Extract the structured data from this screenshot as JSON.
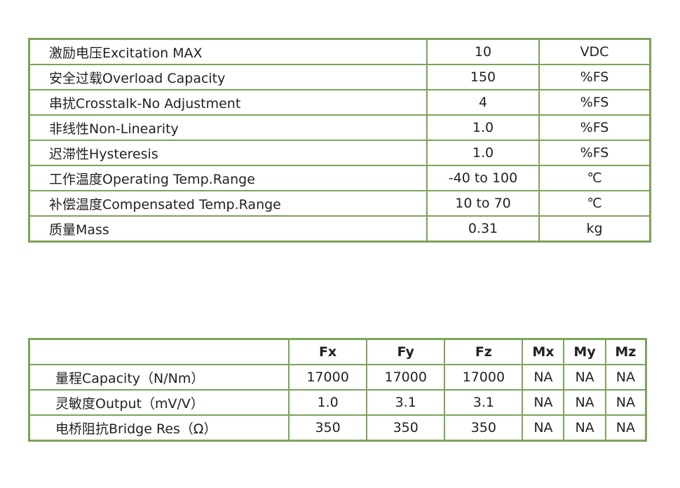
{
  "spec_table": {
    "rows": [
      {
        "label": "激励电压Excitation MAX",
        "value": "10",
        "unit": "VDC"
      },
      {
        "label": "安全过载Overload Capacity",
        "value": "150",
        "unit": "%FS"
      },
      {
        "label": "串扰Crosstalk-No Adjustment",
        "value": "4",
        "unit": "%FS"
      },
      {
        "label": "非线性Non-Linearity",
        "value": "1.0",
        "unit": "%FS"
      },
      {
        "label": "迟滞性Hysteresis",
        "value": "1.0",
        "unit": "%FS"
      },
      {
        "label": "工作温度Operating Temp.Range",
        "value": "-40 to 100",
        "unit": "℃"
      },
      {
        "label": "补偿温度Compensated Temp.Range",
        "value": "10 to 70",
        "unit": "℃"
      },
      {
        "label": "质量Mass",
        "value": "0.31",
        "unit": "kg"
      }
    ]
  },
  "axis_table": {
    "headers": [
      "",
      "Fx",
      "Fy",
      "Fz",
      "Mx",
      "My",
      "Mz"
    ],
    "rows": [
      {
        "label": "量程Capacity（N/Nm）",
        "values": [
          "17000",
          "17000",
          "17000",
          "NA",
          "NA",
          "NA"
        ]
      },
      {
        "label": "灵敏度Output（mV/V）",
        "values": [
          "1.0",
          "3.1",
          "3.1",
          "NA",
          "NA",
          "NA"
        ]
      },
      {
        "label": "电桥阻抗Bridge Res（Ω）",
        "values": [
          "350",
          "350",
          "350",
          "NA",
          "NA",
          "NA"
        ]
      }
    ]
  },
  "colors": {
    "border": "#7ba35b",
    "text": "#231f20"
  }
}
